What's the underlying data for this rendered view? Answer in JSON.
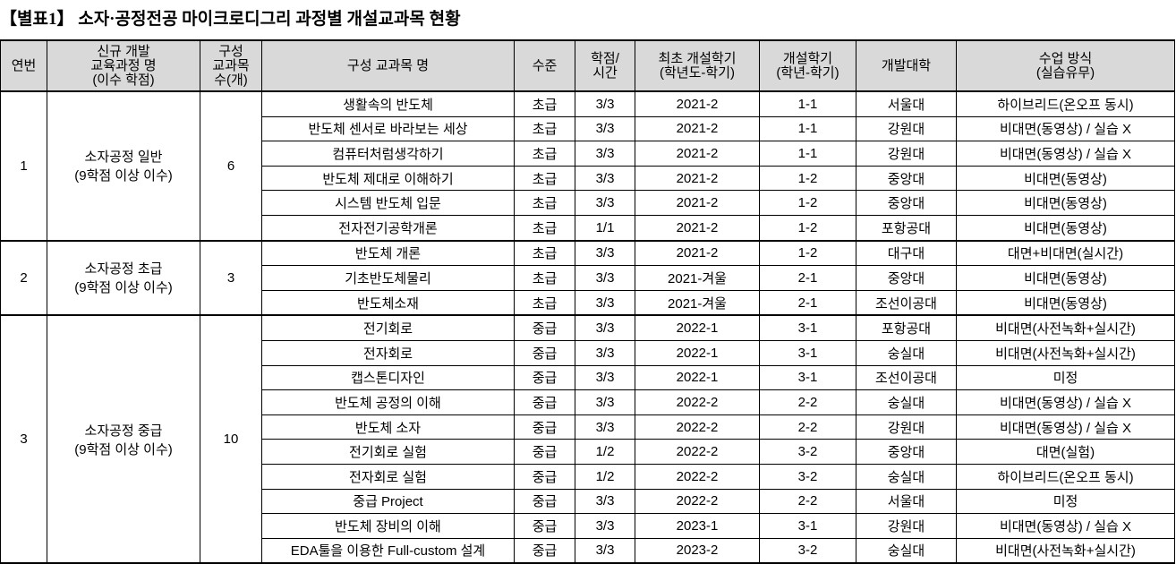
{
  "title": "【별표1】 소자·공정전공 마이크로디그리 과정별 개설교과목 현황",
  "headers": [
    "연번",
    "신규 개발\n교육과정 명\n(이수 학점)",
    "구성\n교과목\n수(개)",
    "구성 교과목 명",
    "수준",
    "학점/\n시간",
    "최초 개설학기\n(학년도-학기)",
    "개설학기\n(학년-학기)",
    "개발대학",
    "수업 방식\n(실습유무)"
  ],
  "groups": [
    {
      "no": "1",
      "program": "소자공정 일반\n(9학점 이상 이수)",
      "count": "6",
      "courses": [
        [
          "생활속의 반도체",
          "초급",
          "3/3",
          "2021-2",
          "1-1",
          "서울대",
          "하이브리드(온오프 동시)"
        ],
        [
          "반도체 센서로 바라보는 세상",
          "초급",
          "3/3",
          "2021-2",
          "1-1",
          "강원대",
          "비대면(동영상) / 실습 X"
        ],
        [
          "컴퓨터처럼생각하기",
          "초급",
          "3/3",
          "2021-2",
          "1-1",
          "강원대",
          "비대면(동영상) / 실습 X"
        ],
        [
          "반도체 제대로 이해하기",
          "초급",
          "3/3",
          "2021-2",
          "1-2",
          "중앙대",
          "비대면(동영상)"
        ],
        [
          "시스템 반도체 입문",
          "초급",
          "3/3",
          "2021-2",
          "1-2",
          "중앙대",
          "비대면(동영상)"
        ],
        [
          "전자전기공학개론",
          "초급",
          "1/1",
          "2021-2",
          "1-2",
          "포항공대",
          "비대면(동영상)"
        ]
      ]
    },
    {
      "no": "2",
      "program": "소자공정 초급\n(9학점 이상 이수)",
      "count": "3",
      "courses": [
        [
          "반도체 개론",
          "초급",
          "3/3",
          "2021-2",
          "1-2",
          "대구대",
          "대면+비대면(실시간)"
        ],
        [
          "기초반도체물리",
          "초급",
          "3/3",
          "2021-겨울",
          "2-1",
          "중앙대",
          "비대면(동영상)"
        ],
        [
          "반도체소재",
          "초급",
          "3/3",
          "2021-겨울",
          "2-1",
          "조선이공대",
          "비대면(동영상)"
        ]
      ]
    },
    {
      "no": "3",
      "program": "소자공정 중급\n(9학점 이상 이수)",
      "count": "10",
      "courses": [
        [
          "전기회로",
          "중급",
          "3/3",
          "2022-1",
          "3-1",
          "포항공대",
          "비대면(사전녹화+실시간)"
        ],
        [
          "전자회로",
          "중급",
          "3/3",
          "2022-1",
          "3-1",
          "숭실대",
          "비대면(사전녹화+실시간)"
        ],
        [
          "캡스톤디자인",
          "중급",
          "3/3",
          "2022-1",
          "3-1",
          "조선이공대",
          "미정"
        ],
        [
          "반도체 공정의 이해",
          "중급",
          "3/3",
          "2022-2",
          "2-2",
          "숭실대",
          "비대면(동영상) / 실습 X"
        ],
        [
          "반도체 소자",
          "중급",
          "3/3",
          "2022-2",
          "2-2",
          "강원대",
          "비대면(동영상) / 실습 X"
        ],
        [
          "전기회로 실험",
          "중급",
          "1/2",
          "2022-2",
          "3-2",
          "중앙대",
          "대면(실험)"
        ],
        [
          "전자회로 실험",
          "중급",
          "1/2",
          "2022-2",
          "3-2",
          "숭실대",
          "하이브리드(온오프 동시)"
        ],
        [
          "중급 Project",
          "중급",
          "3/3",
          "2022-2",
          "2-2",
          "서울대",
          "미정"
        ],
        [
          "반도체 장비의 이해",
          "중급",
          "3/3",
          "2023-1",
          "3-1",
          "강원대",
          "비대면(동영상) / 실습 X"
        ],
        [
          "EDA툴을 이용한 Full-custom 설계",
          "중급",
          "3/3",
          "2023-2",
          "3-2",
          "숭실대",
          "비대면(사전녹화+실시간)"
        ]
      ]
    }
  ]
}
